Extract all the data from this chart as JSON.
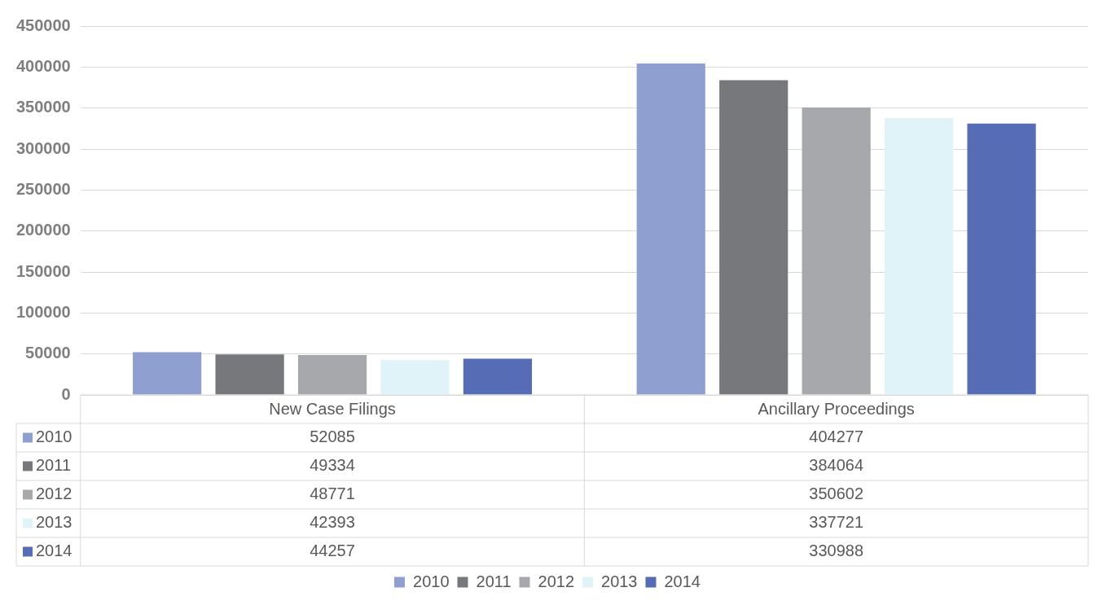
{
  "chart_data": {
    "type": "bar",
    "categories": [
      "New Case Filings",
      "Ancillary Proceedings"
    ],
    "series": [
      {
        "name": "2010",
        "color": "#8fa0d0",
        "values": [
          52085,
          404277
        ]
      },
      {
        "name": "2011",
        "color": "#77787c",
        "values": [
          49334,
          384064
        ]
      },
      {
        "name": "2012",
        "color": "#a7a8ab",
        "values": [
          48771,
          350602
        ]
      },
      {
        "name": "2013",
        "color": "#e0f3f8",
        "values": [
          42393,
          337721
        ]
      },
      {
        "name": "2014",
        "color": "#566cb4",
        "values": [
          44257,
          330988
        ]
      }
    ],
    "ylim": [
      0,
      450000
    ],
    "yticks": [
      0,
      50000,
      100000,
      150000,
      200000,
      250000,
      300000,
      350000,
      400000,
      450000
    ],
    "grid": "y",
    "legend": "bottom",
    "data_labels": true
  }
}
